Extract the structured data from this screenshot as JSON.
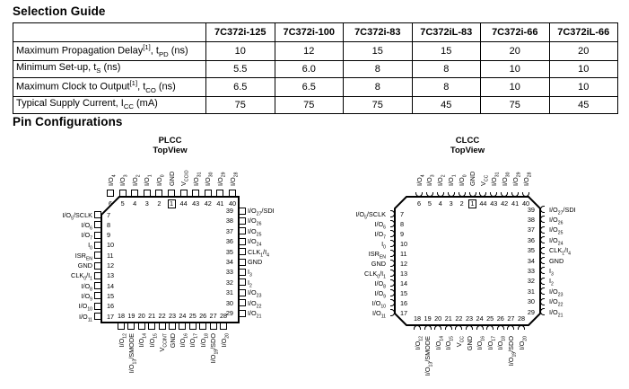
{
  "headings": {
    "selection_guide": "Selection Guide",
    "pin_configurations": "Pin Configurations"
  },
  "selection_table": {
    "columns": [
      "7C372i-125",
      "7C372i-100",
      "7C372i-83",
      "7C372iL-83",
      "7C372i-66",
      "7C372iL-66"
    ],
    "rows": [
      {
        "label": "Maximum Propagation Delay^[1]^, t~PD~ (ns)",
        "values": [
          "10",
          "12",
          "15",
          "15",
          "20",
          "20"
        ]
      },
      {
        "label": "Minimum Set-up, t~S~ (ns)",
        "values": [
          "5.5",
          "6.0",
          "8",
          "8",
          "10",
          "10"
        ]
      },
      {
        "label": "Maximum Clock to Output^[1]^, t~CO~ (ns)",
        "values": [
          "6.5",
          "6.5",
          "8",
          "8",
          "10",
          "10"
        ]
      },
      {
        "label": "Typical Supply Current, I~CC~ (mA)",
        "values": [
          "75",
          "75",
          "75",
          "45",
          "75",
          "45"
        ]
      }
    ]
  },
  "packages": [
    {
      "title": "PLCC",
      "subtitle": "TopView",
      "lead_style": "square",
      "top": {
        "numbers": [
          "6",
          "5",
          "4",
          "3",
          "2",
          "1",
          "44",
          "43",
          "42",
          "41",
          "40"
        ],
        "labels": [
          "I/O~4~",
          "I/O~3~",
          "I/O~2~",
          "I/O~1~",
          "I/O~0~",
          "GND",
          "V~CCIO~",
          "I/O~31~",
          "I/O~30~",
          "I/O~29~",
          "I/O~28~"
        ]
      },
      "left": {
        "numbers": [
          "7",
          "8",
          "9",
          "10",
          "11",
          "12",
          "13",
          "14",
          "15",
          "16",
          "17"
        ],
        "labels": [
          "I/O~5~/SCLK",
          "I/O~6~",
          "I/O~7~",
          "I~0~",
          "ISR~EN~",
          "GND",
          "CLK~0~/I~1~",
          "I/O~8~",
          "I/O~9~",
          "I/O~10~",
          "I/O~11~"
        ]
      },
      "right": {
        "numbers": [
          "39",
          "38",
          "37",
          "36",
          "35",
          "34",
          "33",
          "32",
          "31",
          "30",
          "29"
        ],
        "labels": [
          "I/O~27~/SDI",
          "I/O~26~",
          "I/O~25~",
          "I/O~24~",
          "CLK~1~/I~4~",
          "GND",
          "I~3~",
          "I~2~",
          "I/O~23~",
          "I/O~22~",
          "I/O~21~"
        ]
      },
      "bottom": {
        "numbers": [
          "18",
          "19",
          "20",
          "21",
          "22",
          "23",
          "24",
          "25",
          "26",
          "27",
          "28"
        ],
        "labels": [
          "I/O~12~",
          "I/O~13~/SMODE",
          "I/O~14~",
          "I/O~15~",
          "V~CCINT~",
          "GND",
          "I/O~16~",
          "I/O~17~",
          "I/O~18~",
          "I/O~19~/SDO",
          "I/O~20~"
        ]
      }
    },
    {
      "title": "CLCC",
      "subtitle": "TopView",
      "lead_style": "arc",
      "top": {
        "numbers": [
          "6",
          "5",
          "4",
          "3",
          "2",
          "1",
          "44",
          "43",
          "42",
          "41",
          "40"
        ],
        "labels": [
          "I/O~4~",
          "I/O~3~",
          "I/O~2~",
          "I/O~1~",
          "I/O~0~",
          "GND",
          "V~CC~",
          "I/O~31~",
          "I/O~30~",
          "I/O~29~",
          "I/O~28~"
        ]
      },
      "left": {
        "numbers": [
          "7",
          "8",
          "9",
          "10",
          "11",
          "12",
          "13",
          "14",
          "15",
          "16",
          "17"
        ],
        "labels": [
          "I/O~5~/SCLK",
          "I/O~6~",
          "I/O~7~",
          "I~0~",
          "ISR~EN~",
          "GND",
          "CLK~0~/I~1~",
          "I/O~8~",
          "I/O~9~",
          "I/O~10~",
          "I/O~11~"
        ]
      },
      "right": {
        "numbers": [
          "39",
          "38",
          "37",
          "36",
          "35",
          "34",
          "33",
          "32",
          "31",
          "30",
          "29"
        ],
        "labels": [
          "I/O~27~/SDI",
          "I/O~26~",
          "I/O~25~",
          "I/O~24~",
          "CLK~1~/I~4~",
          "GND",
          "I~3~",
          "I~2~",
          "I/O~23~",
          "I/O~22~",
          "I/O~21~"
        ]
      },
      "bottom": {
        "numbers": [
          "18",
          "19",
          "20",
          "21",
          "22",
          "23",
          "24",
          "25",
          "26",
          "27",
          "28"
        ],
        "labels": [
          "I/O~12~",
          "I/O~13~/SMODE",
          "I/O~14~",
          "I/O~15~",
          "V~CC~",
          "GND",
          "I/O~16~",
          "I/O~17~",
          "I/O~18~",
          "I/O~19~/SDO",
          "I/O~20~"
        ]
      }
    }
  ]
}
